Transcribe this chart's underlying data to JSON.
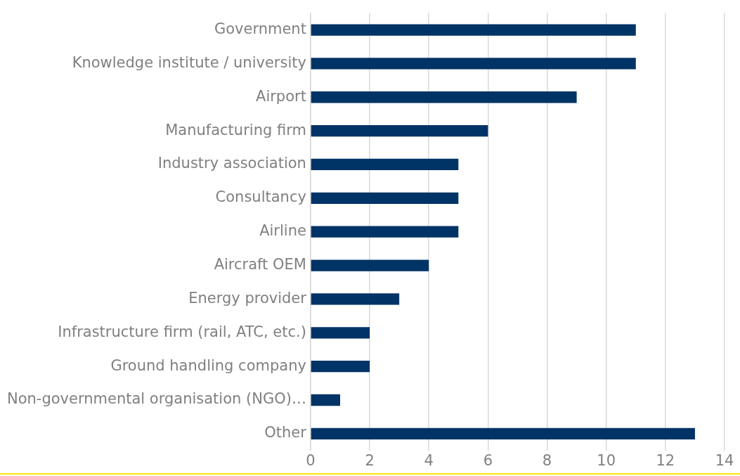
{
  "chart_data": {
    "type": "bar",
    "orientation": "horizontal",
    "categories": [
      "Government",
      "Knowledge institute / university",
      "Airport",
      "Manufacturing firm",
      "Industry association",
      "Consultancy",
      "Airline",
      "Aircraft OEM",
      "Energy provider",
      "Infrastructure firm (rail, ATC, etc.)",
      "Ground handling company",
      "Non-governmental organisation (NGO)…",
      "Other"
    ],
    "values": [
      11,
      11,
      9,
      6,
      5,
      5,
      5,
      4,
      3,
      2,
      2,
      1,
      13
    ],
    "color": "#003366",
    "xlim": [
      0,
      14
    ],
    "xticks": [
      0,
      2,
      4,
      6,
      8,
      10,
      12,
      14
    ],
    "grid": "x",
    "legend": false
  }
}
